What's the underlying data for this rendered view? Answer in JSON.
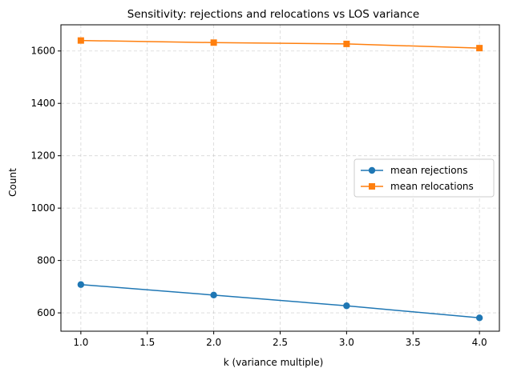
{
  "chart_data": {
    "type": "line",
    "title": "Sensitivity: rejections and relocations vs LOS variance",
    "xlabel": "k (variance multiple)",
    "ylabel": "Count",
    "xlim": [
      0.85,
      4.15
    ],
    "ylim": [
      530,
      1700
    ],
    "xticks": [
      1.0,
      1.5,
      2.0,
      2.5,
      3.0,
      3.5,
      4.0
    ],
    "xtick_labels": [
      "1.0",
      "1.5",
      "2.0",
      "2.5",
      "3.0",
      "3.5",
      "4.0"
    ],
    "yticks": [
      600,
      800,
      1000,
      1200,
      1400,
      1600
    ],
    "ytick_labels": [
      "600",
      "800",
      "1000",
      "1200",
      "1400",
      "1600"
    ],
    "grid": true,
    "legend_position": "center-right",
    "x": [
      1.0,
      2.0,
      3.0,
      4.0
    ],
    "series": [
      {
        "name": "mean rejections",
        "values": [
          708,
          668,
          627,
          581
        ],
        "color": "#1f77b4",
        "marker": "circle"
      },
      {
        "name": "mean relocations",
        "values": [
          1640,
          1632,
          1627,
          1611
        ],
        "color": "#ff7f0e",
        "marker": "square"
      }
    ]
  }
}
